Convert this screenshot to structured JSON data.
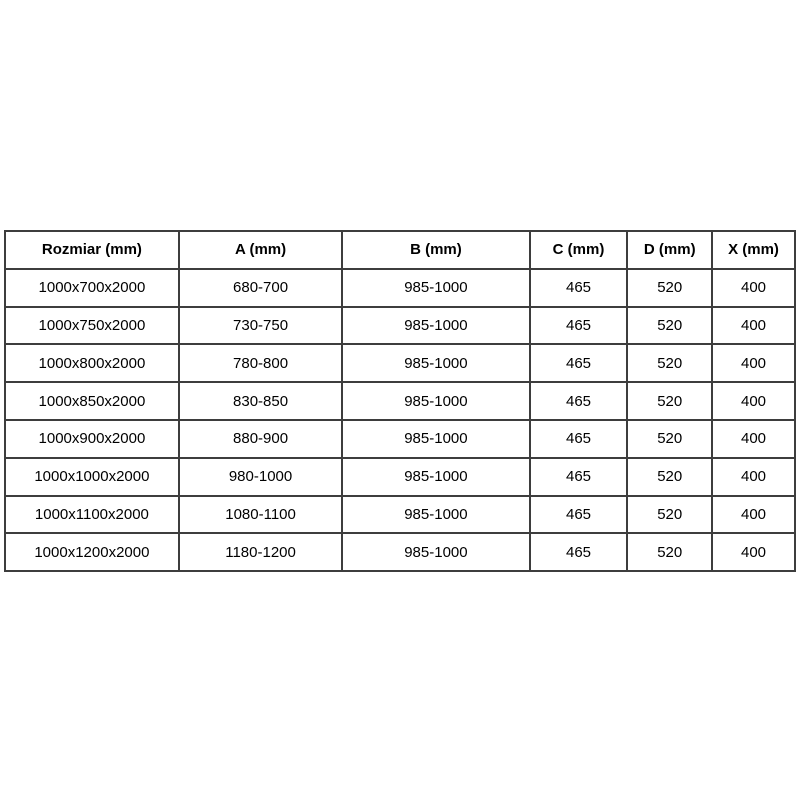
{
  "table": {
    "headers": [
      "Rozmiar (mm)",
      "A (mm)",
      "B (mm)",
      "C (mm)",
      "D (mm)",
      "X (mm)"
    ],
    "rows": [
      [
        "1000x700x2000",
        "680-700",
        "985-1000",
        "465",
        "520",
        "400"
      ],
      [
        "1000x750x2000",
        "730-750",
        "985-1000",
        "465",
        "520",
        "400"
      ],
      [
        "1000x800x2000",
        "780-800",
        "985-1000",
        "465",
        "520",
        "400"
      ],
      [
        "1000x850x2000",
        "830-850",
        "985-1000",
        "465",
        "520",
        "400"
      ],
      [
        "1000x900x2000",
        "880-900",
        "985-1000",
        "465",
        "520",
        "400"
      ],
      [
        "1000x1000x2000",
        "980-1000",
        "985-1000",
        "465",
        "520",
        "400"
      ],
      [
        "1000x1100x2000",
        "1080-1100",
        "985-1000",
        "465",
        "520",
        "400"
      ],
      [
        "1000x1200x2000",
        "1180-1200",
        "985-1000",
        "465",
        "520",
        "400"
      ]
    ],
    "colors": {
      "border": "#3d3d3d",
      "text": "#000000",
      "background": "#ffffff"
    }
  }
}
